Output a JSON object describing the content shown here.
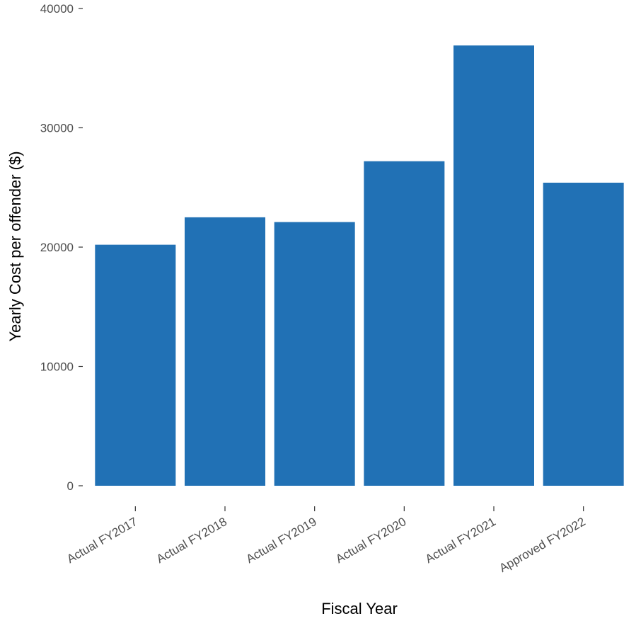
{
  "chart_data": {
    "type": "bar",
    "title": "",
    "xlabel": "Fiscal Year",
    "ylabel": "Yearly Cost per offender ($)",
    "categories": [
      "Actual FY2017",
      "Actual FY2018",
      "Actual FY2019",
      "Actual FY2020",
      "Actual FY2021",
      "Approved FY2022"
    ],
    "values": [
      20200,
      22500,
      22100,
      27200,
      36900,
      25400
    ],
    "ylim": [
      0,
      40000
    ],
    "yticks": [
      0,
      10000,
      20000,
      30000,
      40000
    ],
    "ytick_labels": [
      "0",
      "10000",
      "20000",
      "30000",
      "40000"
    ],
    "grid": false,
    "legend": "none",
    "bar_color": "#2171b5"
  }
}
